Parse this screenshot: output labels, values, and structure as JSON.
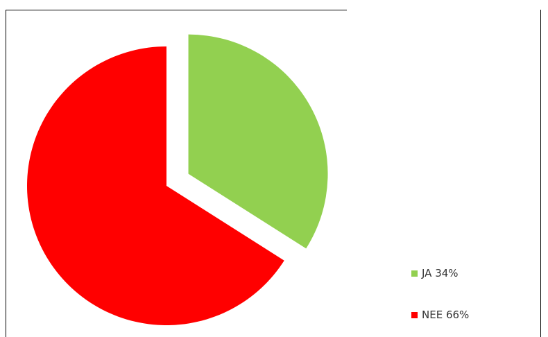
{
  "chart_data": {
    "type": "pie",
    "title": "",
    "slices": [
      {
        "label": "JA 34%",
        "value": 34,
        "color": "#92d050",
        "exploded": true
      },
      {
        "label": "NEE 66%",
        "value": 66,
        "color": "#ff0000",
        "exploded": false
      }
    ],
    "legend_position": "bottom-right"
  }
}
